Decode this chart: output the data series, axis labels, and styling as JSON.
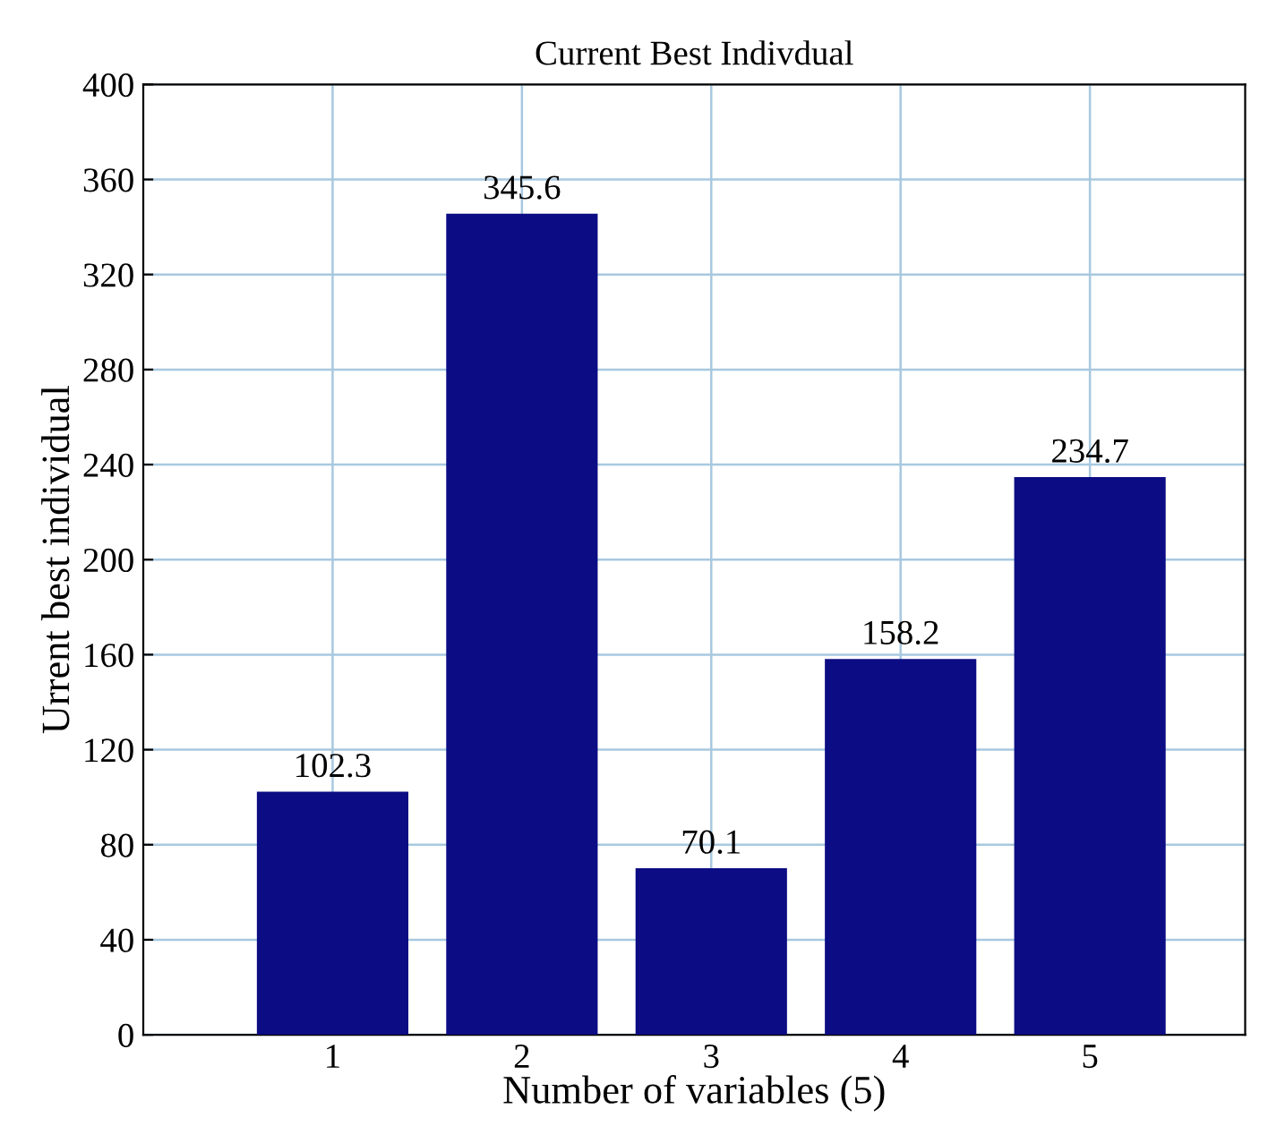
{
  "chart_data": {
    "type": "bar",
    "title": "Current Best Indivdual",
    "xlabel": "Number of variables (5)",
    "ylabel": "Urrent best individual",
    "categories": [
      "1",
      "2",
      "3",
      "4",
      "5"
    ],
    "values": [
      102.3,
      345.6,
      70.1,
      158.2,
      234.7
    ],
    "color": "#0c0c84",
    "data_labels": true,
    "ylim": [
      0,
      400
    ],
    "yticks": [
      0,
      40,
      80,
      120,
      160,
      200,
      240,
      280,
      320,
      360,
      400
    ],
    "grid": true
  }
}
